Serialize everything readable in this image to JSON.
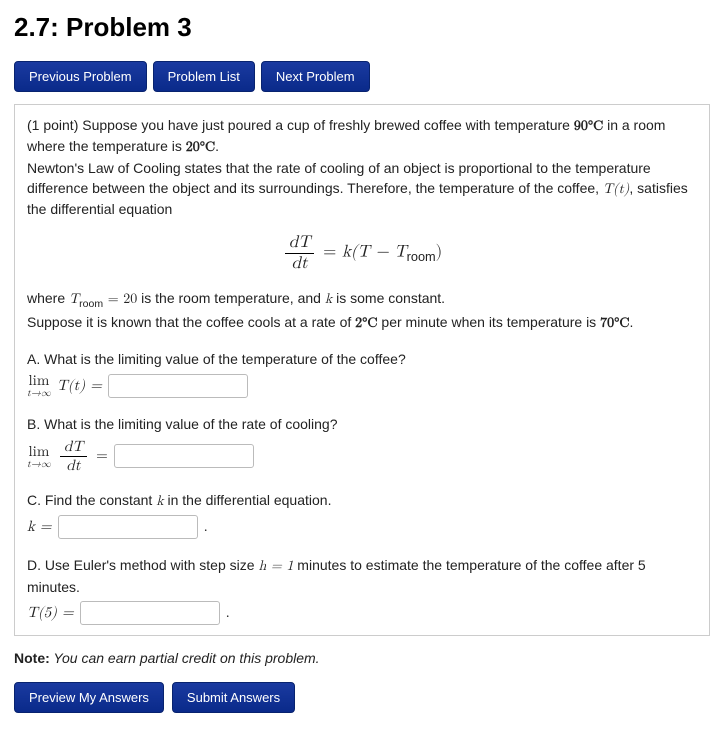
{
  "header": {
    "title": "2.7: Problem 3"
  },
  "nav": {
    "prev": "Previous Problem",
    "list": "Problem List",
    "next": "Next Problem"
  },
  "problem": {
    "points_prefix": "(1 point) Suppose you have just poured a cup of freshly brewed coffee with temperature ",
    "temp_initial": "90°C",
    "intro_mid": " in a room where the temperature is ",
    "temp_room_c": "20°C",
    "intro_end": ".",
    "law_text": "Newton's Law of Cooling states that the rate of cooling of an object is proportional to the temperature difference between the object and its surroundings. Therefore, the temperature of the coffee, ",
    "Tt": "T(t)",
    "law_tail": ", satisfies the differential equation",
    "eq_dT": "dT",
    "eq_dt": "dt",
    "eq_eq": " = ",
    "eq_rhs_k": "k(T − T",
    "eq_rhs_room": "room",
    "eq_rhs_close": ")",
    "where_pre": "where ",
    "Troom": "T",
    "room_sub": "room",
    "eq20": " = 20",
    "where_mid": " is the room temperature, and ",
    "k_sym": "k",
    "where_tail": " is some constant.",
    "suppose_pre": "Suppose it is known that the coffee cools at a rate of ",
    "rate_val": "2°C",
    "suppose_mid": " per minute when its temperature is ",
    "temp_70": "70°C",
    "suppose_end": ".",
    "A_q": "A. What is the limiting value of the temperature of the coffee?",
    "lim_label": "lim",
    "lim_sub": "t→∞",
    "A_expr": "T(t) = ",
    "B_q": "B. What is the limiting value of the rate of cooling?",
    "B_eq": " = ",
    "C_q_pre": "C. Find the constant ",
    "C_q_post": " in the differential equation.",
    "C_expr": "k = ",
    "C_period": " .",
    "D_q_pre": "D. Use Euler's method with step size ",
    "h_sym": "h = 1",
    "D_q_post": " minutes to estimate the temperature of the coffee after 5 minutes.",
    "D_expr": "T(5) = ",
    "D_period": " ."
  },
  "note": {
    "label": "Note:",
    "text": " You can earn partial credit on this problem."
  },
  "bottom": {
    "preview": "Preview My Answers",
    "submit": "Submit Answers"
  },
  "style": {
    "button_bg": "#0a2a8a",
    "border": "#cccccc"
  }
}
